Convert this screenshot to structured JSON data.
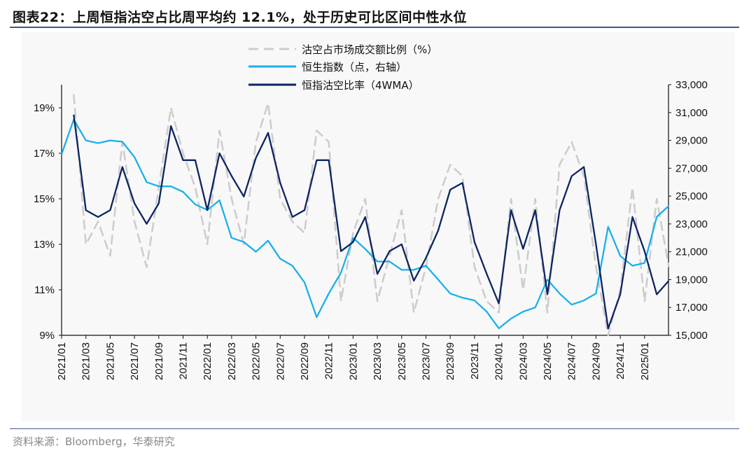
{
  "title": "图表22：上周恒指沽空占比周平均约 12.1%，处于历史可比区间中性水位",
  "source": "资料来源：Bloomberg，华泰研究",
  "chart_data": {
    "type": "line",
    "title": "图表22：上周恒指沽空占比周平均约 12.1%，处于历史可比区间中性水位",
    "legend_position": "top-right",
    "grid": false,
    "left_axis": {
      "ylim": [
        9,
        19.9
      ],
      "ticks": [
        "9%",
        "11%",
        "13%",
        "15%",
        "17%",
        "19%"
      ],
      "tick_values": [
        9,
        11,
        13,
        15,
        17,
        19
      ]
    },
    "right_axis": {
      "ylim": [
        15000,
        33000
      ],
      "ticks": [
        "15,000",
        "17,000",
        "19,000",
        "21,000",
        "23,000",
        "25,000",
        "27,000",
        "29,000",
        "31,000",
        "33,000"
      ],
      "tick_values": [
        15000,
        17000,
        19000,
        21000,
        23000,
        25000,
        27000,
        29000,
        31000,
        33000
      ]
    },
    "x_ticks": [
      "2021/01",
      "2021/03",
      "2021/05",
      "2021/07",
      "2021/09",
      "2021/11",
      "2022/01",
      "2022/03",
      "2022/05",
      "2022/07",
      "2022/09",
      "2022/11",
      "2023/01",
      "2023/03",
      "2023/05",
      "2023/07",
      "2023/09",
      "2023/11",
      "2024/01",
      "2024/03",
      "2024/05",
      "2024/07",
      "2024/09",
      "2024/11",
      "2025/01"
    ],
    "x": [
      "2021-01",
      "2021-02",
      "2021-03",
      "2021-04",
      "2021-05",
      "2021-06",
      "2021-07",
      "2021-08",
      "2021-09",
      "2021-10",
      "2021-11",
      "2021-12",
      "2022-01",
      "2022-02",
      "2022-03",
      "2022-04",
      "2022-05",
      "2022-06",
      "2022-07",
      "2022-08",
      "2022-09",
      "2022-10",
      "2022-11",
      "2022-12",
      "2023-01",
      "2023-02",
      "2023-03",
      "2023-04",
      "2023-05",
      "2023-06",
      "2023-07",
      "2023-08",
      "2023-09",
      "2023-10",
      "2023-11",
      "2023-12",
      "2024-01",
      "2024-02",
      "2024-03",
      "2024-04",
      "2024-05",
      "2024-06",
      "2024-07",
      "2024-08",
      "2024-09",
      "2024-10",
      "2024-11",
      "2024-12",
      "2025-01",
      "2025-02",
      "2025-03"
    ],
    "series": [
      {
        "name": "沽空占市场成交额比例（%）",
        "axis": "left",
        "style": "dashed",
        "color": "#cccccc",
        "values": [
          null,
          19.6,
          13.0,
          14.0,
          12.5,
          17.5,
          14.0,
          12.0,
          15.5,
          19.0,
          17.0,
          15.5,
          13.0,
          18.0,
          15.0,
          13.0,
          17.5,
          19.2,
          15.0,
          14.0,
          13.5,
          18.0,
          17.5,
          10.5,
          13.5,
          15.0,
          10.5,
          12.5,
          14.5,
          10.0,
          12.0,
          15.0,
          16.5,
          16.0,
          12.0,
          10.5,
          10.0,
          15.0,
          11.0,
          15.0,
          10.0,
          16.5,
          17.5,
          16.0,
          12.0,
          9.0,
          11.0,
          15.5,
          10.5,
          15.0,
          12.0
        ]
      },
      {
        "name": "恒生指数（点，右轴）",
        "axis": "right",
        "style": "solid",
        "color": "#1ab0ea",
        "values": [
          28000,
          30500,
          29000,
          28800,
          29000,
          28900,
          27800,
          26000,
          25700,
          25700,
          25300,
          24400,
          24000,
          24700,
          22000,
          21700,
          21000,
          21800,
          20500,
          20000,
          18800,
          16300,
          18000,
          19500,
          22000,
          21200,
          20300,
          20300,
          19700,
          19700,
          20000,
          19000,
          18000,
          17700,
          17500,
          16700,
          15500,
          16200,
          16700,
          17000,
          19000,
          18000,
          17200,
          17500,
          18000,
          22800,
          20700,
          20000,
          20200,
          23500,
          24300
        ]
      },
      {
        "name": "恒指沽空比率（4WMA）",
        "axis": "left",
        "style": "solid",
        "color": "#0c2461",
        "values": [
          null,
          18.7,
          14.5,
          14.2,
          14.5,
          16.4,
          14.8,
          13.9,
          14.8,
          18.2,
          16.7,
          16.7,
          14.5,
          17.0,
          16.0,
          15.1,
          16.8,
          17.9,
          15.7,
          14.2,
          14.5,
          16.7,
          16.7,
          12.7,
          13.1,
          14.2,
          11.7,
          12.7,
          13.0,
          11.4,
          12.4,
          13.6,
          15.4,
          15.7,
          13.1,
          11.7,
          10.4,
          14.5,
          12.8,
          14.5,
          10.8,
          14.5,
          16.0,
          16.4,
          13.0,
          9.3,
          10.8,
          14.2,
          12.7,
          10.8,
          11.4
        ]
      }
    ]
  }
}
